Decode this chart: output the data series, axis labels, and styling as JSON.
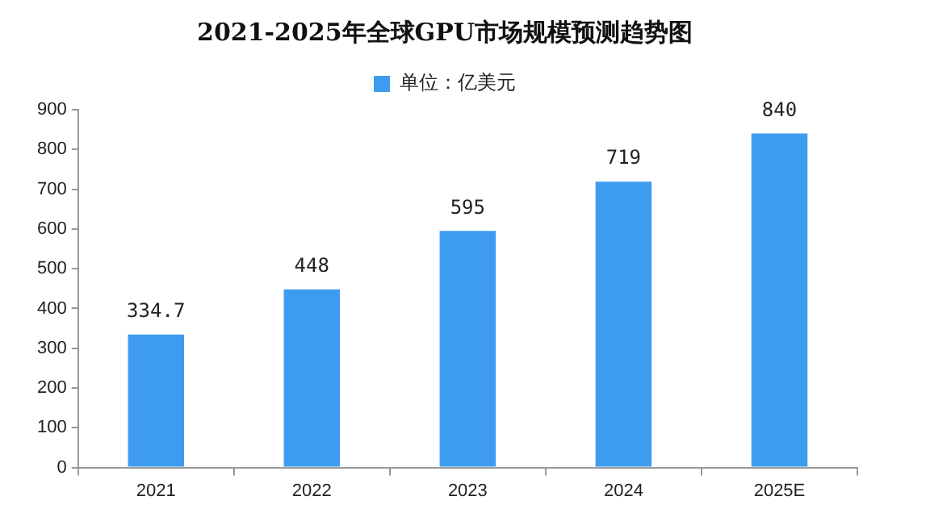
{
  "chart_data": {
    "type": "bar",
    "title": "2021-2025年全球GPU市场规模预测趋势图",
    "categories": [
      "2021",
      "2022",
      "2023",
      "2024",
      "2025E"
    ],
    "series": [
      {
        "name": "单位：亿美元",
        "color": "#3d9cf0",
        "values": [
          334.7,
          448,
          595,
          719,
          840
        ]
      }
    ],
    "ylim": [
      0,
      900
    ],
    "yticks": [
      0,
      100,
      200,
      300,
      400,
      500,
      600,
      700,
      800,
      900
    ],
    "grid": false,
    "legend": "top",
    "data_labels": true
  }
}
